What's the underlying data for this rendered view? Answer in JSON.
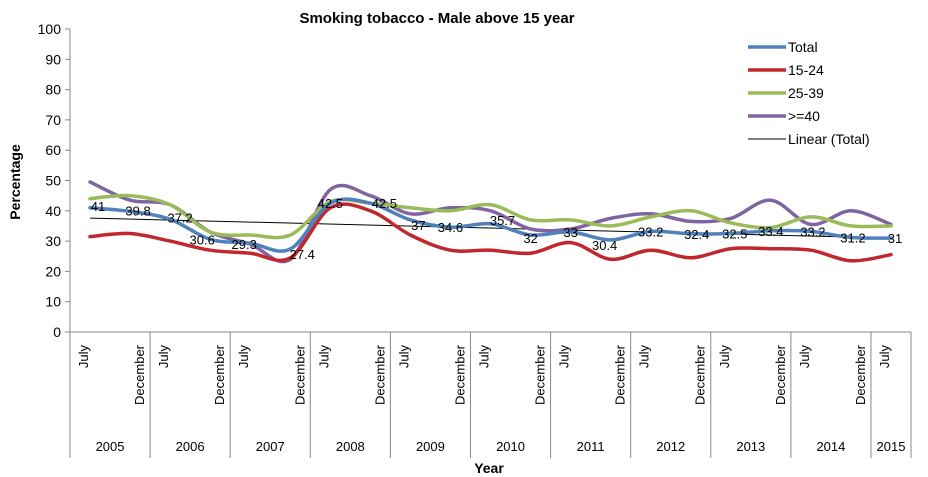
{
  "chart_data": {
    "type": "line",
    "title": "Smoking  tobacco - Male above 15 year",
    "xlabel": "Year",
    "ylabel": "Percentage",
    "ylim": [
      0,
      100
    ],
    "yticks": [
      "0",
      "10",
      "20",
      "30",
      "40",
      "50",
      "60",
      "70",
      "80",
      "90",
      "100"
    ],
    "categories": [
      "July",
      "December",
      "July",
      "December",
      "July",
      "December",
      "July",
      "December",
      "July",
      "December",
      "July",
      "December",
      "July",
      "December",
      "July",
      "December",
      "July",
      "December",
      "July",
      "December",
      "July"
    ],
    "year_groups": [
      {
        "label": "2005",
        "span": 2
      },
      {
        "label": "2006",
        "span": 2
      },
      {
        "label": "2007",
        "span": 2
      },
      {
        "label": "2008",
        "span": 2
      },
      {
        "label": "2009",
        "span": 2
      },
      {
        "label": "2010",
        "span": 2
      },
      {
        "label": "2011",
        "span": 2
      },
      {
        "label": "2012",
        "span": 2
      },
      {
        "label": "2013",
        "span": 2
      },
      {
        "label": "2014",
        "span": 2
      },
      {
        "label": "2015",
        "span": 1
      }
    ],
    "series": [
      {
        "name": "Total",
        "color": "#4f81bd",
        "values": [
          41,
          39.8,
          37.2,
          30.6,
          29.3,
          27.4,
          42.5,
          42.5,
          37,
          34.6,
          35.7,
          32,
          33,
          30.4,
          33.2,
          32.4,
          32.5,
          33.4,
          33.2,
          31.2,
          31
        ],
        "labels": [
          "41",
          "39.8",
          "37.2",
          "30.6",
          "29.3",
          "27.4",
          "42.5",
          "42.5",
          "37",
          "34.6",
          "35.7",
          "32",
          "33",
          "30.4",
          "33.2",
          "32.4",
          "32.5",
          "33.4",
          "33.2",
          "31.2",
          "31"
        ]
      },
      {
        "name": "15-24",
        "color": "#c0282d",
        "values": [
          31.5,
          32.5,
          30,
          27,
          26,
          24.5,
          41,
          40,
          32,
          27,
          27,
          26,
          29.5,
          24,
          27,
          24.5,
          27.5,
          27.5,
          27,
          23.5,
          25.5
        ]
      },
      {
        "name": "25-39",
        "color": "#9bbb59",
        "values": [
          44,
          45,
          42,
          33,
          32,
          32,
          43,
          42.5,
          41,
          40,
          42,
          37,
          37,
          35,
          38,
          40,
          36,
          34.5,
          38,
          35,
          35
        ]
      },
      {
        "name": ">=40",
        "color": "#8064a2",
        "values": [
          49.5,
          43.5,
          42,
          33,
          29,
          24,
          47,
          45,
          39,
          41,
          40,
          34,
          34,
          37.5,
          39,
          36.5,
          37.5,
          43.5,
          35.5,
          40,
          35.5
        ]
      }
    ],
    "trendline": {
      "name": "Linear (Total)",
      "color": "#000000",
      "start": 37.6,
      "end": 31.0
    },
    "legend": "top-right",
    "grid": false
  }
}
